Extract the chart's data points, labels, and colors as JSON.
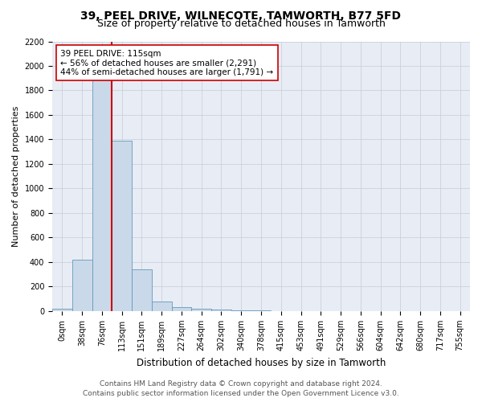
{
  "title": "39, PEEL DRIVE, WILNECOTE, TAMWORTH, B77 5FD",
  "subtitle": "Size of property relative to detached houses in Tamworth",
  "xlabel": "Distribution of detached houses by size in Tamworth",
  "ylabel": "Number of detached properties",
  "bar_color": "#c9d9ea",
  "bar_edge_color": "#6699bb",
  "bins": [
    "0sqm",
    "38sqm",
    "76sqm",
    "113sqm",
    "151sqm",
    "189sqm",
    "227sqm",
    "264sqm",
    "302sqm",
    "340sqm",
    "378sqm",
    "415sqm",
    "453sqm",
    "491sqm",
    "529sqm",
    "566sqm",
    "604sqm",
    "642sqm",
    "680sqm",
    "717sqm",
    "755sqm"
  ],
  "values": [
    18,
    420,
    1900,
    1390,
    340,
    80,
    30,
    20,
    10,
    5,
    3,
    2,
    1,
    1,
    0,
    0,
    0,
    0,
    0,
    0
  ],
  "annotation_text": "39 PEEL DRIVE: 115sqm\n← 56% of detached houses are smaller (2,291)\n44% of semi-detached houses are larger (1,791) →",
  "vline_color": "#cc0000",
  "annotation_box_facecolor": "#ffffff",
  "annotation_box_edgecolor": "#cc0000",
  "ylim_max": 2200,
  "yticks": [
    0,
    200,
    400,
    600,
    800,
    1000,
    1200,
    1400,
    1600,
    1800,
    2000,
    2200
  ],
  "grid_color": "#c8ccd8",
  "bg_color": "#e8ecf4",
  "footer_line1": "Contains HM Land Registry data © Crown copyright and database right 2024.",
  "footer_line2": "Contains public sector information licensed under the Open Government Licence v3.0.",
  "title_fontsize": 10,
  "subtitle_fontsize": 9,
  "xlabel_fontsize": 8.5,
  "ylabel_fontsize": 8,
  "tick_fontsize": 7,
  "annotation_fontsize": 7.5,
  "footer_fontsize": 6.5,
  "vline_x": 2.5
}
